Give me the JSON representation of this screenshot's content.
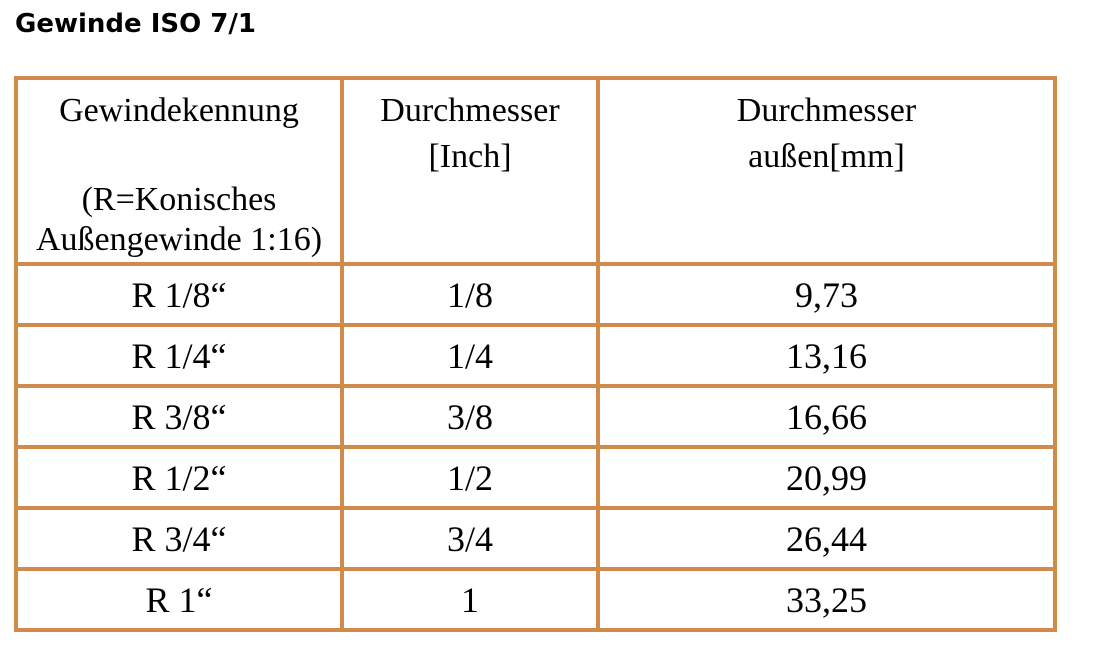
{
  "title": "Gewinde ISO 7/1",
  "colors": {
    "border": "#d08a4a",
    "text": "#000000",
    "background": "#ffffff"
  },
  "table": {
    "headers": [
      {
        "line1": "Gewindekennung",
        "line2": "",
        "note_line1": "(R=Konisches",
        "note_line2": "Außengewinde 1:16)"
      },
      {
        "line1": "Durchmesser",
        "line2": "[Inch]"
      },
      {
        "line1": "Durchmesser",
        "line2": "außen[mm]"
      }
    ],
    "rows": [
      [
        "R 1/8“",
        "1/8",
        "9,73"
      ],
      [
        "R 1/4“",
        "1/4",
        "13,16"
      ],
      [
        "R 3/8“",
        "3/8",
        "16,66"
      ],
      [
        "R 1/2“",
        "1/2",
        "20,99"
      ],
      [
        "R 3/4“",
        "3/4",
        "26,44"
      ],
      [
        "R 1“",
        "1",
        "33,25"
      ]
    ]
  }
}
